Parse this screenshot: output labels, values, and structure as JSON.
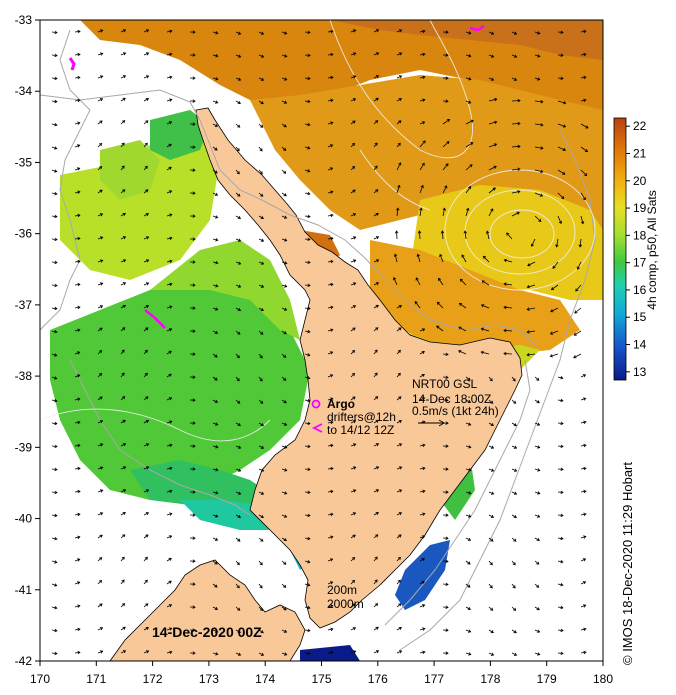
{
  "map": {
    "lon_range": [
      170,
      180
    ],
    "lat_range": [
      -42,
      -33
    ],
    "x_ticks": [
      170,
      171,
      172,
      173,
      174,
      175,
      176,
      177,
      178,
      179,
      180
    ],
    "y_ticks": [
      -33,
      -34,
      -35,
      -36,
      -37,
      -38,
      -39,
      -40,
      -41,
      -42
    ],
    "land_color": "#f8c898",
    "sea_no_data_color": "#ffffff"
  },
  "colorbar": {
    "ticks": [
      13,
      14,
      15,
      16,
      17,
      18,
      19,
      20,
      21,
      22
    ],
    "range": [
      12.7,
      22.3
    ],
    "title": "4h comp, p50, All Sats",
    "colors": [
      "#0a1a8a",
      "#1850c8",
      "#10a8d8",
      "#20d0b0",
      "#40c840",
      "#a0e030",
      "#e8e020",
      "#f0b010",
      "#e07808",
      "#b84010"
    ]
  },
  "annotations": {
    "argo_title": "Argo",
    "argo_line1": "drifters@12h",
    "argo_line2": "to 14/12 12Z",
    "nrt_line1": "NRT00 GSL",
    "nrt_line2": "14-Dec 18:00Z",
    "nrt_line3": "0.5m/s (1kt 24h)",
    "isobath_1": "200m",
    "isobath_2": "2000m",
    "date": "14-Dec-2020 00Z",
    "credit": "© IMOS 18-Dec-2020 11:29 Hobart"
  }
}
